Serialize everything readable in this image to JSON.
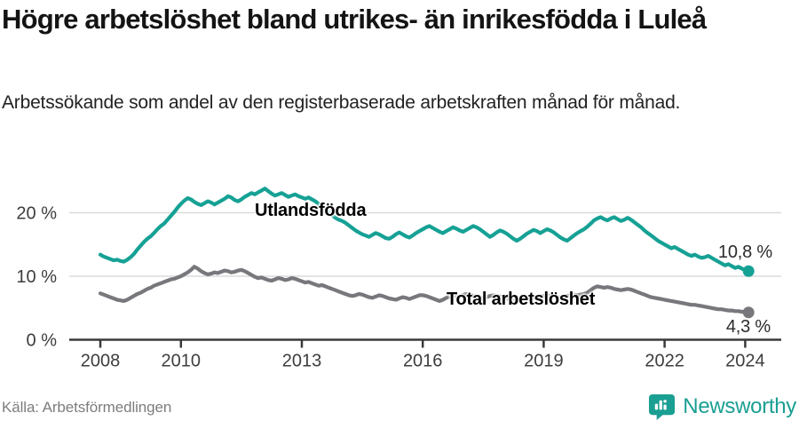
{
  "header": {
    "title": "Högre arbetslöshet bland utrikes- än inrikesfödda i Luleå",
    "subtitle": "Arbetssökande som andel av den registerbaserade arbetskraften månad för månad."
  },
  "footer": {
    "source": "Källa: Arbetsförmedlingen",
    "brand": "Newsworthy"
  },
  "colors": {
    "accent_teal": "#16a195",
    "line_gray": "#77777c",
    "grid": "#dadada",
    "axis": "#3a3a3a",
    "text_dark": "#141414",
    "text_muted": "#7d7d7d"
  },
  "chart_data": {
    "type": "line",
    "title": "Högre arbetslöshet bland utrikes- än inrikesfödda i Luleå",
    "subtitle": "Arbetssökande som andel av den registerbaserade arbetskraften månad för månad.",
    "x_unit": "month",
    "x_start_year": 2008,
    "x_end": "2024-02",
    "x_ticks": [
      2008,
      2010,
      2013,
      2016,
      2019,
      2022,
      2024
    ],
    "x_tick_labels": [
      "2008",
      "2010",
      "2013",
      "2016",
      "2019",
      "2022",
      "2024"
    ],
    "y_ticks": [
      0,
      10,
      20
    ],
    "y_tick_labels": [
      "0 %",
      "10 %",
      "20 %"
    ],
    "ylim": [
      0,
      26
    ],
    "grid": "horizontal",
    "legend_position": "inline-labels",
    "series": [
      {
        "name": "Utlandsfödda",
        "color": "#16a195",
        "end_label": "10,8 %",
        "end_value": 10.8,
        "values": [
          13.4,
          13.1,
          12.9,
          12.7,
          12.5,
          12.6,
          12.4,
          12.3,
          12.6,
          13.0,
          13.5,
          14.2,
          14.8,
          15.4,
          15.9,
          16.3,
          16.8,
          17.4,
          17.9,
          18.3,
          18.9,
          19.5,
          20.1,
          20.8,
          21.4,
          21.9,
          22.3,
          22.1,
          21.7,
          21.4,
          21.2,
          21.5,
          21.8,
          21.6,
          21.3,
          21.6,
          21.9,
          22.2,
          22.6,
          22.4,
          22.0,
          21.8,
          22.1,
          22.5,
          22.8,
          23.1,
          22.9,
          23.2,
          23.5,
          23.8,
          23.4,
          23.0,
          22.7,
          22.9,
          23.1,
          22.8,
          22.5,
          22.7,
          22.9,
          22.6,
          22.4,
          22.2,
          22.4,
          22.1,
          21.8,
          21.4,
          21.0,
          20.5,
          20.0,
          19.6,
          19.2,
          18.9,
          18.7,
          18.4,
          18.0,
          17.6,
          17.2,
          16.9,
          16.6,
          16.4,
          16.2,
          16.5,
          16.8,
          16.6,
          16.3,
          16.0,
          15.9,
          16.2,
          16.6,
          16.9,
          16.6,
          16.3,
          16.1,
          16.4,
          16.8,
          17.1,
          17.4,
          17.7,
          17.9,
          17.6,
          17.3,
          17.0,
          16.8,
          17.1,
          17.4,
          17.7,
          17.5,
          17.2,
          17.0,
          17.3,
          17.6,
          17.9,
          17.7,
          17.4,
          17.0,
          16.6,
          16.2,
          16.5,
          16.9,
          17.2,
          17.0,
          16.7,
          16.3,
          15.9,
          15.6,
          15.9,
          16.3,
          16.7,
          17.0,
          17.3,
          17.1,
          16.8,
          17.1,
          17.4,
          17.2,
          16.9,
          16.5,
          16.1,
          15.8,
          15.6,
          16.0,
          16.4,
          16.8,
          17.1,
          17.4,
          17.8,
          18.3,
          18.8,
          19.1,
          19.3,
          19.0,
          18.8,
          19.1,
          19.3,
          19.0,
          18.7,
          18.9,
          19.2,
          18.9,
          18.5,
          18.1,
          17.7,
          17.2,
          16.8,
          16.4,
          16.0,
          15.6,
          15.3,
          15.0,
          14.7,
          14.4,
          14.6,
          14.3,
          14.0,
          13.7,
          13.4,
          13.2,
          13.4,
          13.1,
          12.9,
          13.0,
          13.2,
          12.9,
          12.6,
          12.3,
          12.0,
          11.7,
          11.9,
          11.6,
          11.3,
          11.5,
          11.2,
          11.0,
          10.8
        ]
      },
      {
        "name": "Total arbetslöshet",
        "color": "#77777c",
        "end_label": "4,3 %",
        "end_value": 4.3,
        "values": [
          7.3,
          7.1,
          6.9,
          6.7,
          6.5,
          6.3,
          6.2,
          6.1,
          6.3,
          6.6,
          6.9,
          7.2,
          7.4,
          7.7,
          8.0,
          8.2,
          8.5,
          8.7,
          8.9,
          9.1,
          9.3,
          9.5,
          9.6,
          9.8,
          10.0,
          10.3,
          10.6,
          11.0,
          11.5,
          11.2,
          10.8,
          10.5,
          10.3,
          10.4,
          10.6,
          10.5,
          10.7,
          10.9,
          10.8,
          10.6,
          10.7,
          10.9,
          11.0,
          10.8,
          10.5,
          10.2,
          9.9,
          9.7,
          9.8,
          9.6,
          9.4,
          9.3,
          9.5,
          9.7,
          9.6,
          9.4,
          9.5,
          9.7,
          9.6,
          9.4,
          9.2,
          9.0,
          9.1,
          8.9,
          8.7,
          8.5,
          8.6,
          8.4,
          8.2,
          8.0,
          7.8,
          7.6,
          7.4,
          7.2,
          7.0,
          6.9,
          7.0,
          7.2,
          7.1,
          6.9,
          6.7,
          6.6,
          6.8,
          7.0,
          6.9,
          6.7,
          6.5,
          6.4,
          6.3,
          6.5,
          6.7,
          6.6,
          6.4,
          6.6,
          6.8,
          7.0,
          7.0,
          6.9,
          6.7,
          6.5,
          6.3,
          6.1,
          6.3,
          6.6,
          6.8,
          7.0,
          6.9,
          6.8,
          7.0,
          7.2,
          7.1,
          6.9,
          6.8,
          6.6,
          6.5,
          6.7,
          6.9,
          7.0,
          6.9,
          6.8,
          6.7,
          6.5,
          6.4,
          6.3,
          6.2,
          6.4,
          6.6,
          6.5,
          6.4,
          6.6,
          6.7,
          6.8,
          6.9,
          7.0,
          6.9,
          6.8,
          6.7,
          6.6,
          6.8,
          6.9,
          7.0,
          7.1,
          7.0,
          7.1,
          7.2,
          7.4,
          7.8,
          8.2,
          8.4,
          8.3,
          8.2,
          8.3,
          8.2,
          8.0,
          7.9,
          7.8,
          7.9,
          8.0,
          7.9,
          7.7,
          7.5,
          7.3,
          7.1,
          6.9,
          6.7,
          6.6,
          6.5,
          6.4,
          6.3,
          6.2,
          6.1,
          6.0,
          5.9,
          5.8,
          5.7,
          5.6,
          5.5,
          5.5,
          5.4,
          5.3,
          5.2,
          5.1,
          5.0,
          4.9,
          4.8,
          4.8,
          4.7,
          4.6,
          4.6,
          4.5,
          4.5,
          4.4,
          4.4,
          4.3
        ]
      }
    ]
  }
}
